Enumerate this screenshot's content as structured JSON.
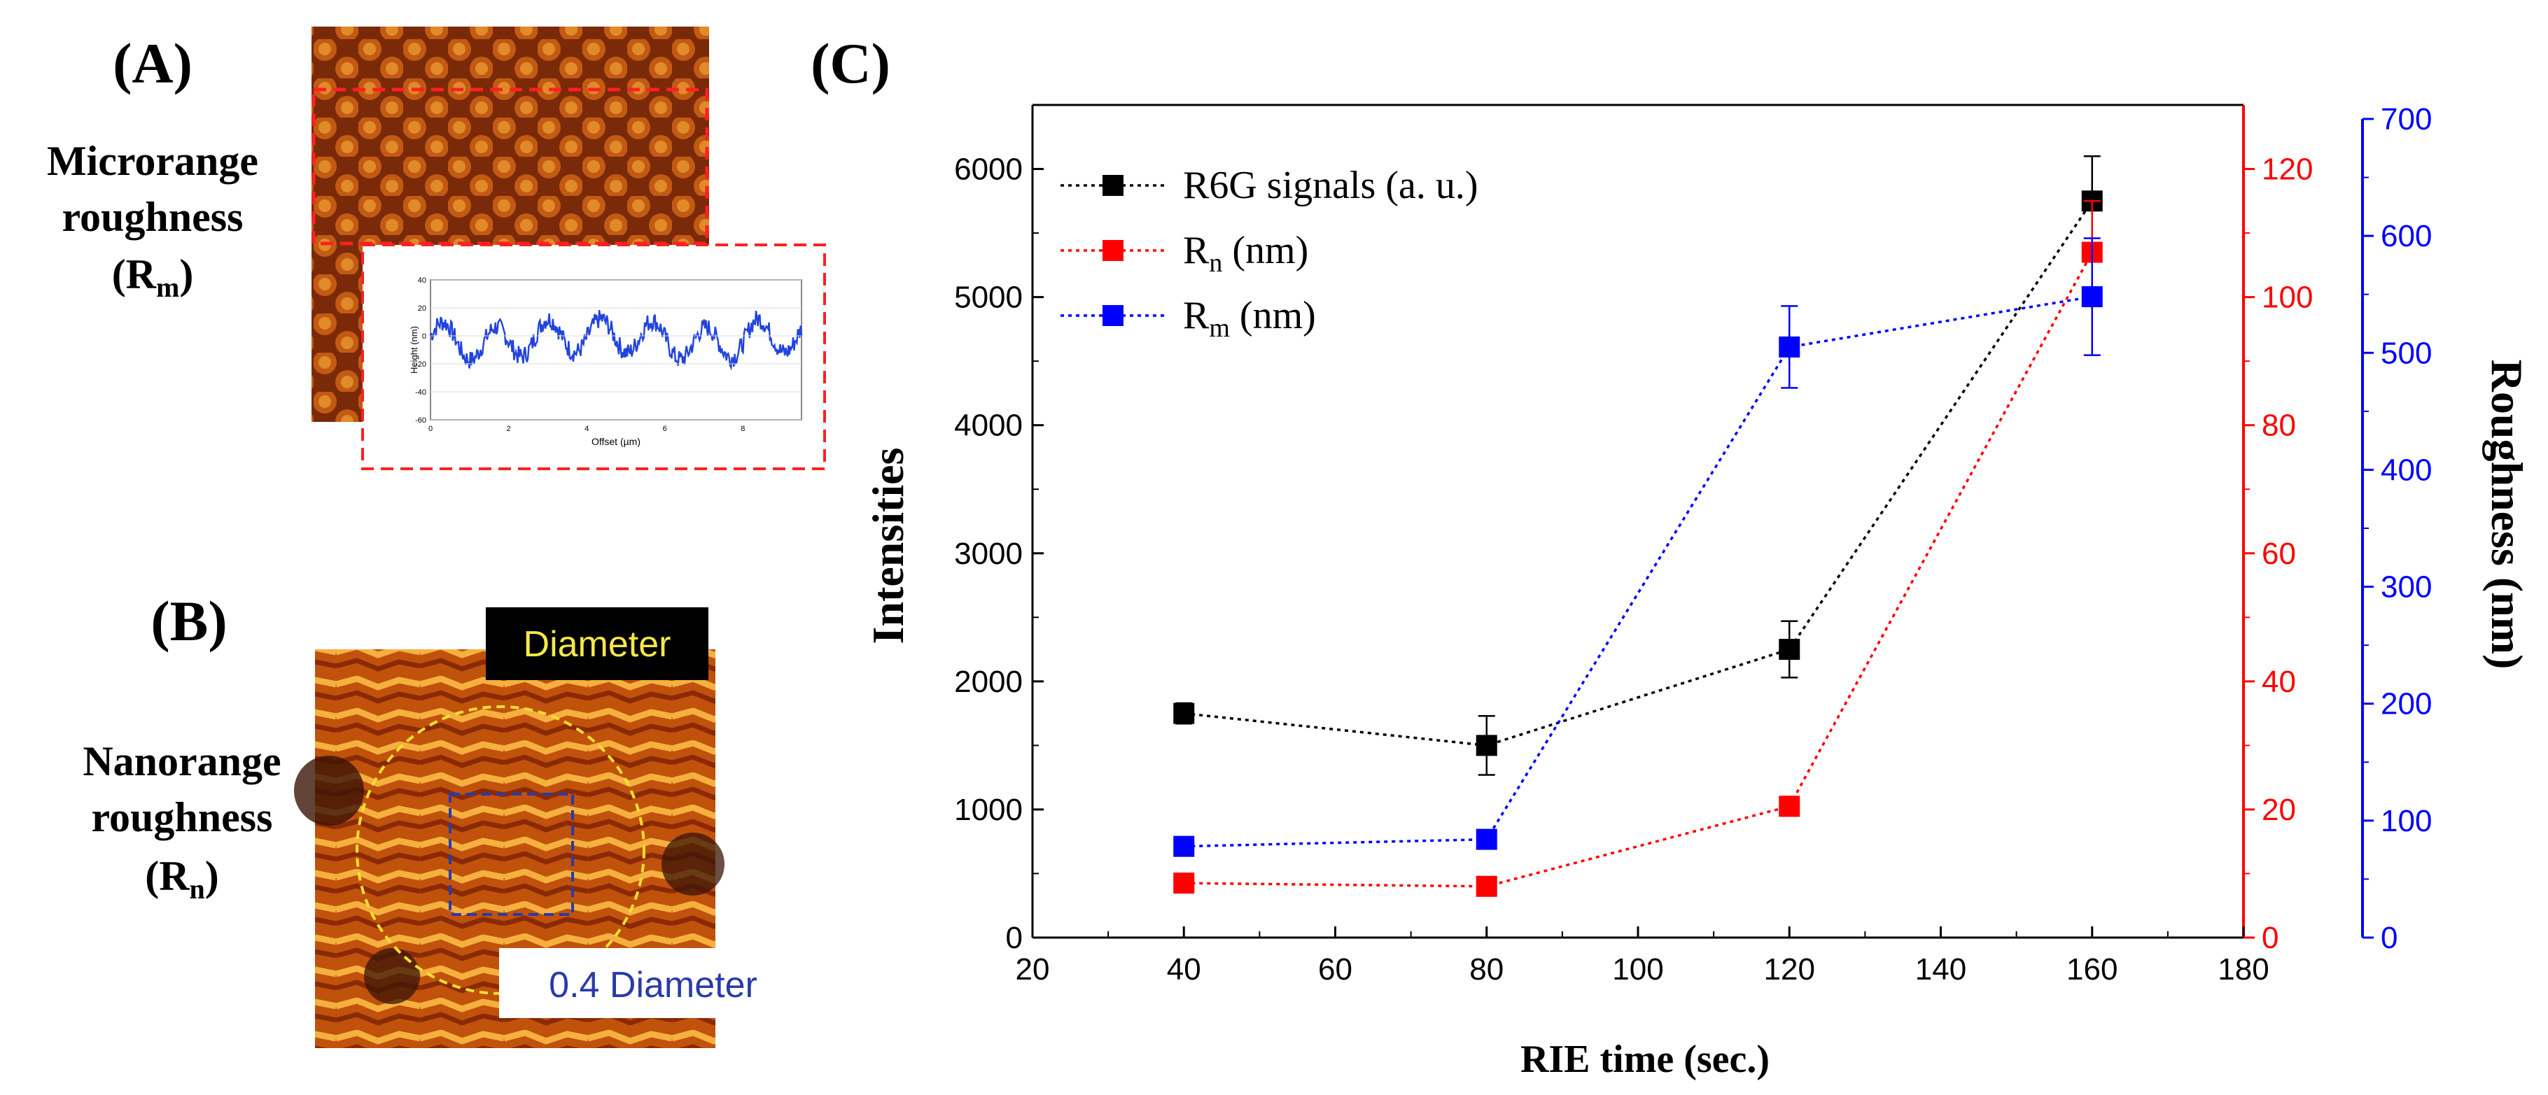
{
  "panel_a": {
    "label": "(A)",
    "caption_line1": "Microrange",
    "caption_line2": "roughness",
    "caption_sym": "(R",
    "caption_sub": "m",
    "caption_close": ")",
    "inset": {
      "yaxis_label": "Height (nm)",
      "xaxis_label": "Offset (µm)",
      "y_ticks": [
        "40",
        "20",
        "0",
        "-20",
        "-40",
        "-60"
      ],
      "x_ticks": [
        "0",
        "2",
        "4",
        "6",
        "8"
      ]
    }
  },
  "panel_b": {
    "label": "(B)",
    "caption_line1": "Nanorange",
    "caption_line2": "roughness",
    "caption_sym": "(R",
    "caption_sub": "n",
    "caption_close": ")",
    "diameter_label": "Diameter",
    "fraction_label": "0.4 Diameter"
  },
  "panel_c": {
    "label": "(C)"
  },
  "colors": {
    "signal": "#000000",
    "rn": "#ff0000",
    "rm": "#0000ff",
    "afm_dark": "#3a1405",
    "afm_mid": "#b8480e",
    "afm_light": "#f0a030"
  },
  "chart_data": {
    "type": "line",
    "title": "",
    "xlabel": "RIE time (sec.)",
    "ylabel": "Intensities",
    "y2label": "",
    "y3label": "Roughness (nm)",
    "xlim": [
      20,
      180
    ],
    "x_ticks": [
      "20",
      "40",
      "60",
      "80",
      "100",
      "120",
      "140",
      "160",
      "180"
    ],
    "y_ticks": [
      "0",
      "1000",
      "2000",
      "3000",
      "4000",
      "5000",
      "6000"
    ],
    "ylim": [
      0,
      6500
    ],
    "y2lim": [
      0,
      130
    ],
    "y2_ticks": [
      "0",
      "20",
      "40",
      "60",
      "80",
      "100",
      "120"
    ],
    "y3lim": [
      0,
      700
    ],
    "y3_ticks": [
      "0",
      "100",
      "200",
      "300",
      "400",
      "500",
      "600",
      "700"
    ],
    "x": [
      40,
      80,
      120,
      160
    ],
    "series": [
      {
        "name": "R6G signals (a. u.)",
        "legend_main": "R6G signals (a. u.)",
        "legend_sub": "",
        "legend_tail": "",
        "axis": "left",
        "color": "#000000",
        "values": [
          1750,
          1500,
          2250,
          5750
        ],
        "errors": [
          80,
          230,
          220,
          350
        ]
      },
      {
        "name": "Rn (nm)",
        "legend_main": "R",
        "legend_sub": "n",
        "legend_tail": " (nm)",
        "axis": "right1",
        "color": "#ff0000",
        "values": [
          8.5,
          8.0,
          20.5,
          107
        ],
        "errors": [
          0.6,
          0.6,
          1.5,
          8
        ]
      },
      {
        "name": "Rm (nm)",
        "legend_main": "R",
        "legend_sub": "m",
        "legend_tail": " (nm)",
        "axis": "right2",
        "color": "#0000ff",
        "values": [
          78,
          84,
          505,
          548
        ],
        "errors": [
          4,
          4,
          35,
          50
        ]
      }
    ]
  }
}
